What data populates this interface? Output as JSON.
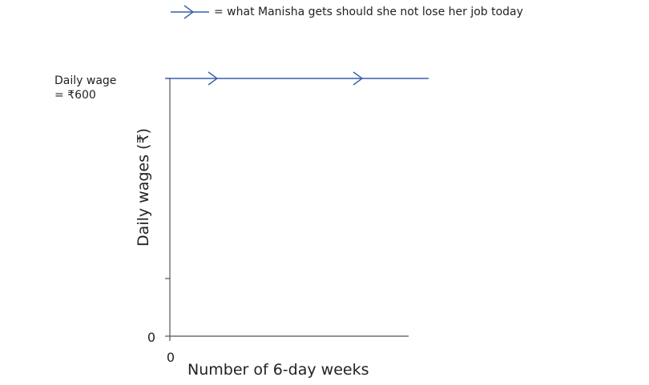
{
  "chart_data": {
    "type": "line",
    "title": "",
    "xlabel": "Number of 6-day weeks",
    "ylabel": "Daily wages (₹)",
    "x_origin_label": "0",
    "y_origin_label": "0",
    "annotation": {
      "line1": "Daily wage",
      "line2": "= ₹600"
    },
    "legend": {
      "text": "= what Manisha gets should she not lose her job today",
      "placement": "top"
    },
    "series": [
      {
        "wage": 600,
        "color": "#3a5fa8",
        "style": "solid-with-arrows"
      }
    ],
    "ylim": [
      0,
      600
    ],
    "grid": false,
    "colors": {
      "line": "#3a5fa8",
      "axis": "#555555",
      "text": "#222222"
    }
  }
}
